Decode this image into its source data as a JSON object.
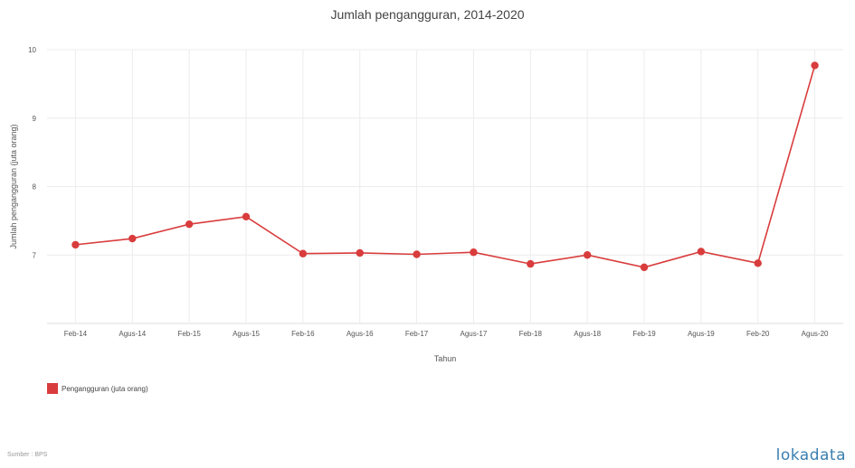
{
  "chart_data": {
    "type": "line",
    "title": "Jumlah pengangguran, 2014-2020",
    "xlabel": "Tahun",
    "ylabel": "Jumlah pengangguran (juta orang)",
    "categories": [
      "Feb-14",
      "Agus-14",
      "Feb-15",
      "Agus-15",
      "Feb-16",
      "Agus-16",
      "Feb-17",
      "Agus-17",
      "Feb-18",
      "Agus-18",
      "Feb-19",
      "Agus-19",
      "Feb-20",
      "Agus-20"
    ],
    "series": [
      {
        "name": "Pengangguran (juta orang)",
        "values": [
          7.15,
          7.24,
          7.45,
          7.56,
          7.02,
          7.03,
          7.01,
          7.04,
          6.87,
          7.0,
          6.82,
          7.05,
          6.88,
          9.77
        ]
      }
    ],
    "yticks": [
      7,
      8,
      9,
      10
    ],
    "ylim": [
      6.0,
      10.0
    ],
    "grid": true,
    "legend_position": "bottom-left"
  },
  "colors": {
    "series": "#d93c3c",
    "grid": "#ececec"
  },
  "footer": {
    "source": "Sumber : BPS",
    "brand": "lokadata"
  }
}
